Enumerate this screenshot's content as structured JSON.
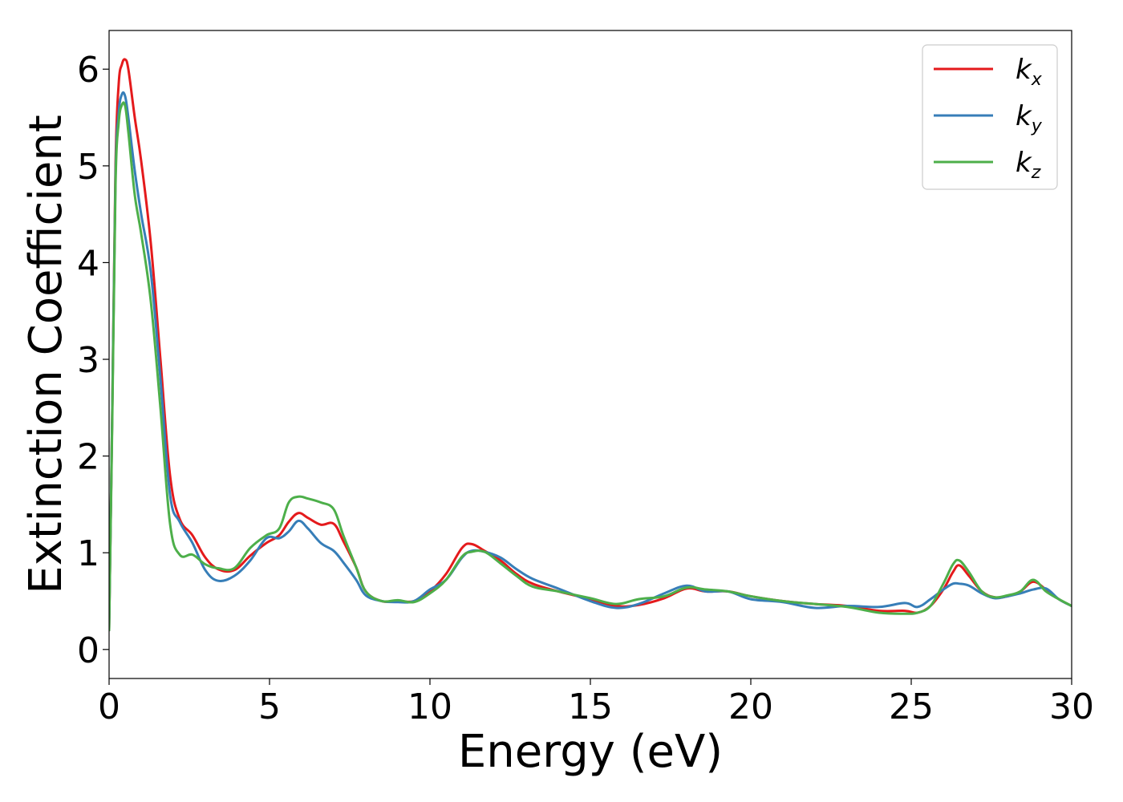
{
  "chart_data": {
    "type": "line",
    "xlabel": "Energy (eV)",
    "ylabel": "Extinction Coefficient",
    "xlim": [
      0,
      30
    ],
    "ylim": [
      -0.3,
      6.4
    ],
    "xticks": [
      0,
      5,
      10,
      15,
      20,
      25,
      30
    ],
    "xtick_labels": [
      "0",
      "5",
      "10",
      "15",
      "20",
      "25",
      "30"
    ],
    "yticks": [
      0,
      1,
      2,
      3,
      4,
      5,
      6
    ],
    "ytick_labels": [
      "0",
      "1",
      "2",
      "3",
      "4",
      "5",
      "6"
    ],
    "grid": false,
    "legend_position": "top-right",
    "series": [
      {
        "name": "k_x",
        "label_base": "k",
        "label_sub": "x",
        "color": "#e41a1c",
        "x": [
          0.0,
          0.1,
          0.2,
          0.3,
          0.4,
          0.5,
          0.6,
          0.8,
          1.0,
          1.3,
          1.6,
          1.9,
          2.2,
          2.6,
          3.0,
          3.4,
          3.9,
          4.4,
          4.9,
          5.3,
          5.6,
          5.9,
          6.2,
          6.6,
          7.0,
          7.3,
          7.7,
          8.0,
          8.5,
          9.0,
          9.5,
          10.0,
          10.5,
          11.0,
          11.3,
          11.7,
          12.2,
          12.7,
          13.2,
          14.0,
          15.0,
          15.8,
          16.5,
          17.3,
          18.0,
          18.6,
          19.3,
          20.0,
          21.0,
          22.0,
          23.0,
          24.0,
          24.8,
          25.2,
          25.6,
          26.0,
          26.3,
          26.5,
          26.8,
          27.2,
          27.6,
          28.0,
          28.4,
          28.8,
          29.2,
          29.6,
          30.0
        ],
        "y": [
          0.2,
          2.5,
          5.0,
          5.85,
          6.05,
          6.1,
          6.0,
          5.5,
          5.05,
          4.2,
          3.0,
          1.8,
          1.35,
          1.18,
          0.95,
          0.83,
          0.82,
          0.97,
          1.1,
          1.18,
          1.32,
          1.41,
          1.36,
          1.29,
          1.3,
          1.12,
          0.85,
          0.6,
          0.5,
          0.5,
          0.5,
          0.6,
          0.78,
          1.05,
          1.09,
          1.02,
          0.92,
          0.78,
          0.68,
          0.6,
          0.52,
          0.45,
          0.46,
          0.53,
          0.63,
          0.6,
          0.6,
          0.55,
          0.5,
          0.47,
          0.45,
          0.4,
          0.4,
          0.38,
          0.45,
          0.62,
          0.8,
          0.87,
          0.76,
          0.6,
          0.54,
          0.55,
          0.6,
          0.7,
          0.62,
          0.52,
          0.45
        ]
      },
      {
        "name": "k_y",
        "label_base": "k",
        "label_sub": "y",
        "color": "#377eb8",
        "x": [
          0.0,
          0.1,
          0.2,
          0.3,
          0.4,
          0.5,
          0.6,
          0.8,
          1.0,
          1.3,
          1.6,
          1.9,
          2.2,
          2.6,
          3.0,
          3.4,
          3.9,
          4.4,
          4.9,
          5.3,
          5.6,
          5.9,
          6.2,
          6.6,
          7.0,
          7.3,
          7.7,
          8.0,
          8.5,
          9.0,
          9.5,
          10.0,
          10.5,
          11.0,
          11.3,
          11.7,
          12.2,
          12.7,
          13.2,
          14.0,
          15.0,
          15.8,
          16.5,
          17.3,
          18.0,
          18.6,
          19.3,
          20.0,
          21.0,
          22.0,
          23.0,
          24.0,
          24.8,
          25.2,
          25.6,
          26.0,
          26.3,
          26.5,
          26.8,
          27.2,
          27.6,
          28.0,
          28.4,
          28.8,
          29.2,
          29.6,
          30.0
        ],
        "y": [
          0.2,
          2.5,
          4.9,
          5.55,
          5.74,
          5.72,
          5.5,
          4.95,
          4.5,
          3.9,
          2.8,
          1.6,
          1.32,
          1.1,
          0.82,
          0.71,
          0.76,
          0.92,
          1.15,
          1.15,
          1.22,
          1.33,
          1.25,
          1.1,
          1.02,
          0.9,
          0.72,
          0.56,
          0.5,
          0.49,
          0.5,
          0.62,
          0.72,
          0.95,
          1.02,
          1.01,
          0.95,
          0.83,
          0.73,
          0.63,
          0.5,
          0.43,
          0.47,
          0.58,
          0.66,
          0.6,
          0.6,
          0.52,
          0.49,
          0.43,
          0.45,
          0.44,
          0.48,
          0.44,
          0.52,
          0.62,
          0.68,
          0.68,
          0.66,
          0.58,
          0.53,
          0.55,
          0.58,
          0.62,
          0.63,
          0.52,
          0.45
        ]
      },
      {
        "name": "k_z",
        "label_base": "k",
        "label_sub": "z",
        "color": "#4daf4a",
        "x": [
          0.0,
          0.1,
          0.2,
          0.3,
          0.4,
          0.5,
          0.6,
          0.8,
          1.0,
          1.3,
          1.6,
          1.9,
          2.2,
          2.6,
          3.0,
          3.4,
          3.9,
          4.4,
          4.9,
          5.3,
          5.6,
          5.9,
          6.2,
          6.6,
          7.0,
          7.3,
          7.7,
          8.0,
          8.5,
          9.0,
          9.5,
          10.0,
          10.5,
          11.0,
          11.3,
          11.7,
          12.2,
          12.7,
          13.2,
          14.0,
          15.0,
          15.8,
          16.5,
          17.3,
          18.0,
          18.6,
          19.3,
          20.0,
          21.0,
          22.0,
          23.0,
          24.0,
          24.8,
          25.2,
          25.6,
          26.0,
          26.3,
          26.5,
          26.8,
          27.2,
          27.6,
          28.0,
          28.4,
          28.8,
          29.2,
          29.6,
          30.0
        ],
        "y": [
          0.2,
          2.4,
          4.8,
          5.45,
          5.63,
          5.62,
          5.35,
          4.7,
          4.3,
          3.6,
          2.5,
          1.3,
          0.98,
          0.98,
          0.88,
          0.84,
          0.84,
          1.05,
          1.18,
          1.25,
          1.52,
          1.58,
          1.56,
          1.52,
          1.45,
          1.18,
          0.85,
          0.6,
          0.5,
          0.51,
          0.49,
          0.58,
          0.72,
          0.96,
          1.01,
          1.01,
          0.89,
          0.76,
          0.65,
          0.6,
          0.53,
          0.47,
          0.52,
          0.55,
          0.64,
          0.62,
          0.6,
          0.55,
          0.5,
          0.47,
          0.44,
          0.38,
          0.37,
          0.38,
          0.45,
          0.68,
          0.88,
          0.92,
          0.8,
          0.6,
          0.54,
          0.56,
          0.6,
          0.72,
          0.6,
          0.52,
          0.45
        ]
      }
    ]
  }
}
